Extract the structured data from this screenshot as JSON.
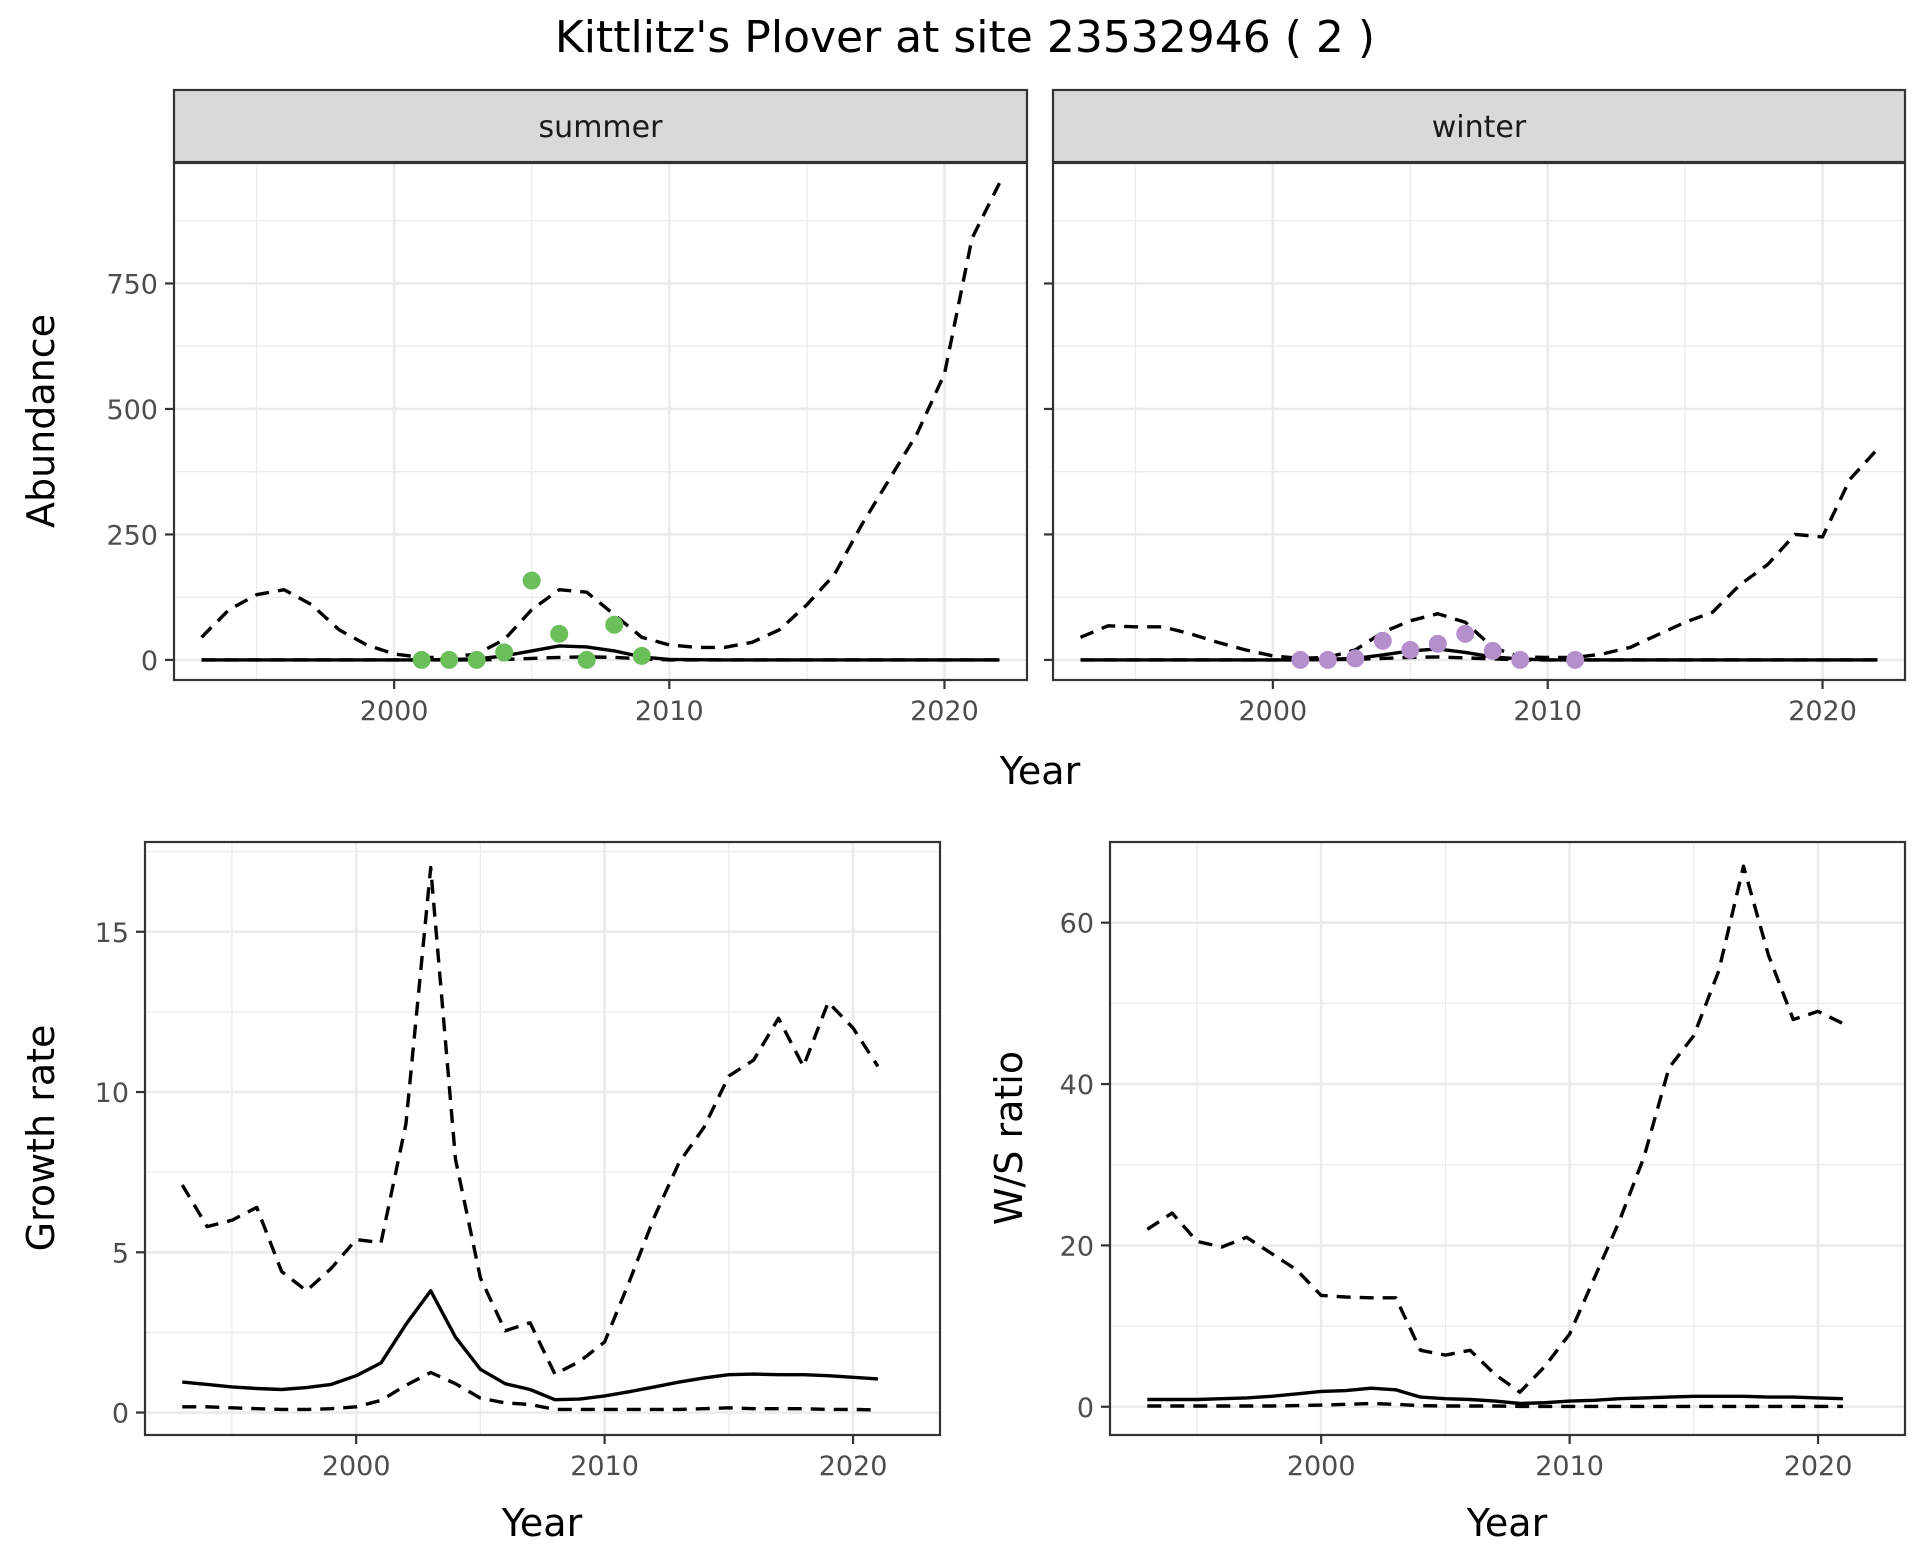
{
  "title": "Kittlitz's Plover at site 23532946 ( 2 )",
  "colors": {
    "summer_points": "#6abf5a",
    "winter_points": "#b48fcb",
    "lines": "#000000",
    "grid": "#ebebeb",
    "strip": "#d9d9d9"
  },
  "chart_data": [
    {
      "type": "line",
      "panel": "summer",
      "strip_label": "summer",
      "xlabel": "",
      "ylabel": "Abundance",
      "xlim": [
        1992,
        2023
      ],
      "ylim": [
        -40,
        990
      ],
      "x_ticks": [
        2000,
        2010,
        2020
      ],
      "y_ticks": [
        0,
        250,
        500,
        750
      ],
      "series": [
        {
          "style": "solid",
          "x": [
            1993,
            1995,
            1997,
            1999,
            2001,
            2003,
            2004,
            2005,
            2006,
            2007,
            2008,
            2009,
            2010,
            2012,
            2014,
            2016,
            2018,
            2020,
            2022
          ],
          "y": [
            0,
            0,
            0,
            0,
            0,
            2,
            8,
            18,
            28,
            26,
            18,
            6,
            1,
            0,
            0,
            0,
            0,
            0,
            0
          ]
        },
        {
          "style": "dashed",
          "x": [
            1993,
            1995,
            1997,
            1999,
            2001,
            2003,
            2004,
            2005,
            2006,
            2007,
            2008,
            2009,
            2010,
            2012,
            2014,
            2016,
            2018,
            2020,
            2022
          ],
          "y": [
            0,
            0,
            0,
            0,
            0,
            0,
            1,
            3,
            5,
            6,
            5,
            2,
            0,
            0,
            0,
            0,
            0,
            0,
            0
          ]
        },
        {
          "style": "dashed",
          "x": [
            1993,
            1994,
            1995,
            1996,
            1997,
            1998,
            1999,
            2000,
            2001,
            2002,
            2003,
            2004,
            2005,
            2006,
            2007,
            2008,
            2009,
            2010,
            2011,
            2012,
            2013,
            2014,
            2015,
            2016,
            2017,
            2018,
            2019,
            2020,
            2021,
            2022
          ],
          "y": [
            45,
            100,
            130,
            140,
            110,
            60,
            30,
            12,
            5,
            5,
            12,
            40,
            100,
            140,
            135,
            90,
            45,
            30,
            25,
            25,
            35,
            60,
            110,
            170,
            270,
            360,
            450,
            570,
            840,
            950
          ]
        }
      ],
      "points": {
        "x": [
          2001,
          2002,
          2003,
          2004,
          2005,
          2006,
          2007,
          2008,
          2009
        ],
        "y": [
          0,
          0,
          0,
          15,
          158,
          52,
          0,
          70,
          8
        ]
      }
    },
    {
      "type": "line",
      "panel": "winter",
      "strip_label": "winter",
      "xlabel": "",
      "ylabel": "",
      "xlim": [
        1992,
        2023
      ],
      "ylim": [
        -40,
        990
      ],
      "x_ticks": [
        2000,
        2010,
        2020
      ],
      "y_ticks": [
        0,
        250,
        500,
        750
      ],
      "series": [
        {
          "style": "solid",
          "x": [
            1993,
            1995,
            1997,
            1999,
            2001,
            2003,
            2004,
            2005,
            2006,
            2007,
            2008,
            2009,
            2010,
            2012,
            2014,
            2016,
            2018,
            2020,
            2022
          ],
          "y": [
            0,
            0,
            0,
            0,
            0,
            3,
            10,
            18,
            22,
            15,
            6,
            2,
            0,
            0,
            0,
            0,
            0,
            0,
            0
          ]
        },
        {
          "style": "dashed",
          "x": [
            1993,
            1995,
            1997,
            1999,
            2001,
            2003,
            2004,
            2005,
            2006,
            2007,
            2008,
            2009,
            2010,
            2012,
            2014,
            2016,
            2018,
            2020,
            2022
          ],
          "y": [
            0,
            0,
            0,
            0,
            0,
            1,
            3,
            5,
            6,
            4,
            2,
            0,
            0,
            0,
            0,
            0,
            0,
            0,
            0
          ]
        },
        {
          "style": "dashed",
          "x": [
            1993,
            1994,
            1995,
            1996,
            1997,
            1998,
            1999,
            2000,
            2001,
            2002,
            2003,
            2004,
            2005,
            2006,
            2007,
            2008,
            2009,
            2010,
            2011,
            2012,
            2013,
            2014,
            2015,
            2016,
            2017,
            2018,
            2019,
            2020,
            2021,
            2022
          ],
          "y": [
            45,
            68,
            66,
            66,
            52,
            35,
            20,
            8,
            3,
            5,
            20,
            55,
            78,
            92,
            75,
            25,
            6,
            5,
            5,
            12,
            25,
            50,
            75,
            95,
            150,
            190,
            250,
            245,
            360,
            420
          ]
        }
      ],
      "points": {
        "x": [
          2001,
          2002,
          2003,
          2004,
          2005,
          2006,
          2007,
          2008,
          2009,
          2011
        ],
        "y": [
          0,
          0,
          3,
          38,
          20,
          32,
          52,
          18,
          0,
          0
        ]
      }
    },
    {
      "type": "line",
      "panel": "growth",
      "xlabel": "Year",
      "ylabel": "Growth rate",
      "xlim": [
        1991.5,
        2023.5
      ],
      "ylim": [
        -0.7,
        17.8
      ],
      "x_ticks": [
        2000,
        2010,
        2020
      ],
      "y_ticks": [
        0,
        5,
        10,
        15
      ],
      "series": [
        {
          "style": "solid",
          "x": [
            1993,
            1994,
            1995,
            1996,
            1997,
            1998,
            1999,
            2000,
            2001,
            2002,
            2003,
            2004,
            2005,
            2006,
            2007,
            2008,
            2009,
            2010,
            2011,
            2012,
            2013,
            2014,
            2015,
            2016,
            2017,
            2018,
            2019,
            2020,
            2021
          ],
          "y": [
            0.95,
            0.88,
            0.8,
            0.75,
            0.72,
            0.78,
            0.88,
            1.15,
            1.55,
            2.75,
            3.8,
            2.35,
            1.35,
            0.9,
            0.72,
            0.4,
            0.42,
            0.52,
            0.65,
            0.8,
            0.95,
            1.08,
            1.18,
            1.2,
            1.18,
            1.18,
            1.15,
            1.1,
            1.05
          ]
        },
        {
          "style": "dashed",
          "x": [
            1993,
            1994,
            1995,
            1996,
            1997,
            1998,
            1999,
            2000,
            2001,
            2002,
            2003,
            2004,
            2005,
            2006,
            2007,
            2008,
            2009,
            2010,
            2011,
            2012,
            2013,
            2014,
            2015,
            2016,
            2017,
            2018,
            2019,
            2020,
            2021
          ],
          "y": [
            0.18,
            0.18,
            0.15,
            0.12,
            0.1,
            0.1,
            0.12,
            0.18,
            0.38,
            0.85,
            1.25,
            0.9,
            0.45,
            0.3,
            0.25,
            0.1,
            0.1,
            0.1,
            0.1,
            0.1,
            0.1,
            0.12,
            0.15,
            0.12,
            0.12,
            0.12,
            0.1,
            0.1,
            0.08
          ]
        },
        {
          "style": "dashed",
          "x": [
            1993,
            1994,
            1995,
            1996,
            1997,
            1998,
            1999,
            2000,
            2001,
            2002,
            2003,
            2004,
            2005,
            2006,
            2007,
            2008,
            2009,
            2010,
            2011,
            2012,
            2013,
            2014,
            2015,
            2016,
            2017,
            2018,
            2019,
            2020,
            2021
          ],
          "y": [
            7.1,
            5.8,
            6.0,
            6.4,
            4.4,
            3.8,
            4.5,
            5.4,
            5.3,
            9.0,
            17.0,
            7.9,
            4.2,
            2.55,
            2.8,
            1.2,
            1.6,
            2.2,
            4.1,
            6.1,
            7.8,
            8.9,
            10.5,
            11.0,
            12.3,
            10.8,
            12.8,
            12.0,
            10.8
          ]
        }
      ]
    },
    {
      "type": "line",
      "panel": "ratio",
      "xlabel": "Year",
      "ylabel": "W/S ratio",
      "xlim": [
        1991.5,
        2023.5
      ],
      "ylim": [
        -3.5,
        70
      ],
      "x_ticks": [
        2000,
        2010,
        2020
      ],
      "y_ticks": [
        0,
        20,
        40,
        60
      ],
      "series": [
        {
          "style": "solid",
          "x": [
            1993,
            1994,
            1995,
            1996,
            1997,
            1998,
            1999,
            2000,
            2001,
            2002,
            2003,
            2004,
            2005,
            2006,
            2007,
            2008,
            2009,
            2010,
            2011,
            2012,
            2013,
            2014,
            2015,
            2016,
            2017,
            2018,
            2019,
            2020,
            2021
          ],
          "y": [
            0.9,
            0.9,
            0.9,
            1.0,
            1.1,
            1.3,
            1.6,
            1.9,
            2.0,
            2.3,
            2.1,
            1.2,
            1.0,
            0.9,
            0.7,
            0.4,
            0.5,
            0.7,
            0.8,
            1.0,
            1.1,
            1.2,
            1.3,
            1.3,
            1.3,
            1.2,
            1.2,
            1.1,
            1.0
          ]
        },
        {
          "style": "dashed",
          "x": [
            1993,
            1994,
            1995,
            1996,
            1997,
            1998,
            1999,
            2000,
            2001,
            2002,
            2003,
            2004,
            2005,
            2006,
            2007,
            2008,
            2009,
            2010,
            2011,
            2012,
            2013,
            2014,
            2015,
            2016,
            2017,
            2018,
            2019,
            2020,
            2021
          ],
          "y": [
            0.1,
            0.1,
            0.1,
            0.1,
            0.1,
            0.1,
            0.15,
            0.2,
            0.3,
            0.4,
            0.3,
            0.15,
            0.1,
            0.1,
            0.1,
            0.05,
            0.05,
            0.05,
            0.05,
            0.05,
            0.05,
            0.05,
            0.05,
            0.05,
            0.05,
            0.05,
            0.05,
            0.05,
            0.05
          ]
        },
        {
          "style": "dashed",
          "x": [
            1993,
            1994,
            1995,
            1996,
            1997,
            1998,
            1999,
            2000,
            2001,
            2002,
            2003,
            2004,
            2005,
            2006,
            2007,
            2008,
            2009,
            2010,
            2011,
            2012,
            2013,
            2014,
            2015,
            2016,
            2017,
            2018,
            2019,
            2020,
            2021
          ],
          "y": [
            22,
            24,
            20.5,
            19.8,
            21,
            19,
            17,
            13.8,
            13.6,
            13.5,
            13.5,
            7.0,
            6.4,
            7.0,
            4.0,
            1.8,
            5.0,
            9.0,
            16,
            23,
            31,
            42,
            46,
            54,
            67,
            56,
            48,
            49,
            47.5
          ]
        }
      ]
    }
  ]
}
